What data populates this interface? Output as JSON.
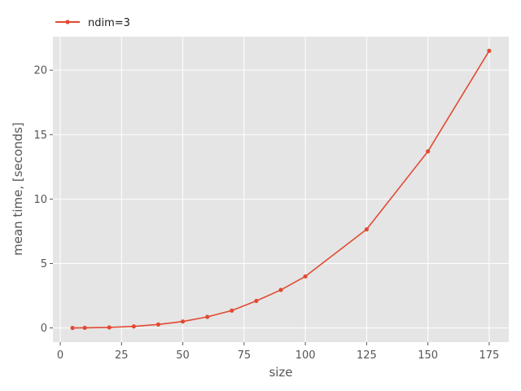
{
  "colors": {
    "plot_background": "#e5e5e5",
    "grid": "#ffffff",
    "series": "#e24a33",
    "tick_text": "#555555",
    "label_text": "#555555"
  },
  "chart_data": {
    "type": "line",
    "title": "",
    "xlabel": "size",
    "ylabel": "mean time, [seconds]",
    "xlim": [
      -3,
      183
    ],
    "ylim": [
      -1.1,
      22.6
    ],
    "xticks": [
      0,
      25,
      50,
      75,
      100,
      125,
      150,
      175
    ],
    "yticks": [
      0,
      5,
      10,
      15,
      20
    ],
    "grid": true,
    "legend": "top-left, above plot",
    "series": [
      {
        "name": "ndim=3",
        "marker": "circle",
        "x": [
          5,
          10,
          20,
          30,
          40,
          50,
          60,
          70,
          80,
          90,
          100,
          125,
          150,
          175
        ],
        "y": [
          0.0,
          0.01,
          0.04,
          0.12,
          0.27,
          0.5,
          0.86,
          1.35,
          2.1,
          2.95,
          4.0,
          7.65,
          13.7,
          21.5
        ]
      }
    ]
  }
}
